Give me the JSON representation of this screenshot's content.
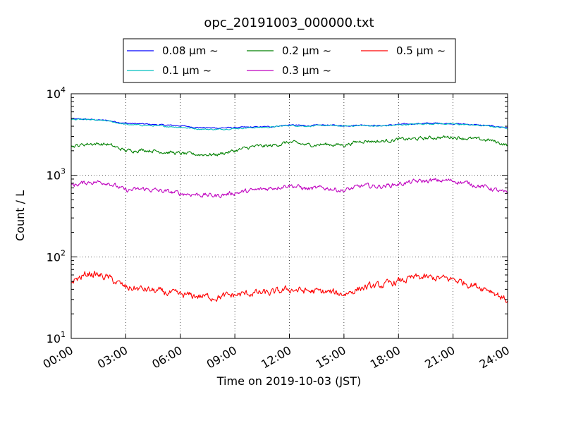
{
  "chart_data": {
    "type": "line",
    "title": "opc_20191003_000000.txt",
    "xlabel": "Time on 2019-10-03 (JST)",
    "ylabel": "Count / L",
    "yscale": "log",
    "ylim": [
      10,
      10000
    ],
    "xlim": [
      "00:00",
      "24:00"
    ],
    "x_ticks": [
      "00:00",
      "03:00",
      "06:00",
      "09:00",
      "12:00",
      "15:00",
      "18:00",
      "21:00",
      "24:00"
    ],
    "y_ticks": [
      {
        "base": "10",
        "exp": "1",
        "value": 10
      },
      {
        "base": "10",
        "exp": "2",
        "value": 100
      },
      {
        "base": "10",
        "exp": "3",
        "value": 1000
      },
      {
        "base": "10",
        "exp": "4",
        "value": 10000
      }
    ],
    "grid": true,
    "legend_position": "top, above plot",
    "x_hours": [
      0,
      1,
      2,
      3,
      4,
      5,
      6,
      7,
      8,
      9,
      10,
      11,
      12,
      13,
      14,
      15,
      16,
      17,
      18,
      19,
      20,
      21,
      22,
      23,
      24
    ],
    "series": [
      {
        "name": "0.08 μm ~",
        "color": "#0000ff",
        "noise": 0.012,
        "values": [
          4900,
          4850,
          4700,
          4350,
          4250,
          4150,
          4050,
          3850,
          3800,
          3850,
          3900,
          3950,
          4150,
          4050,
          4150,
          4050,
          4150,
          4050,
          4200,
          4300,
          4350,
          4300,
          4200,
          4050,
          3850
        ]
      },
      {
        "name": "0.1 μm ~",
        "color": "#00bfbf",
        "noise": 0.012,
        "values": [
          4850,
          4800,
          4650,
          4200,
          4100,
          4000,
          3900,
          3700,
          3650,
          3750,
          3850,
          3900,
          4100,
          4000,
          4100,
          4000,
          4100,
          4000,
          4150,
          4250,
          4300,
          4250,
          4150,
          4000,
          3800
        ]
      },
      {
        "name": "0.2 μm ~",
        "color": "#008000",
        "noise": 0.035,
        "values": [
          2250,
          2450,
          2400,
          2000,
          2050,
          1950,
          1850,
          1800,
          1800,
          2000,
          2250,
          2300,
          2550,
          2350,
          2400,
          2350,
          2650,
          2600,
          2750,
          2800,
          2900,
          2950,
          2800,
          2700,
          2350
        ]
      },
      {
        "name": "0.3 μm ~",
        "color": "#bf00bf",
        "noise": 0.045,
        "values": [
          750,
          830,
          820,
          650,
          680,
          640,
          600,
          580,
          560,
          610,
          650,
          700,
          760,
          680,
          700,
          650,
          740,
          730,
          780,
          840,
          860,
          860,
          780,
          700,
          590
        ]
      },
      {
        "name": "0.5 μm ~",
        "color": "#ff0000",
        "noise": 0.07,
        "values": [
          50,
          63,
          56,
          42,
          40,
          37,
          34,
          33,
          32,
          34,
          36,
          36,
          40,
          38,
          37,
          35,
          42,
          44,
          50,
          56,
          55,
          53,
          46,
          40,
          29
        ]
      }
    ]
  }
}
